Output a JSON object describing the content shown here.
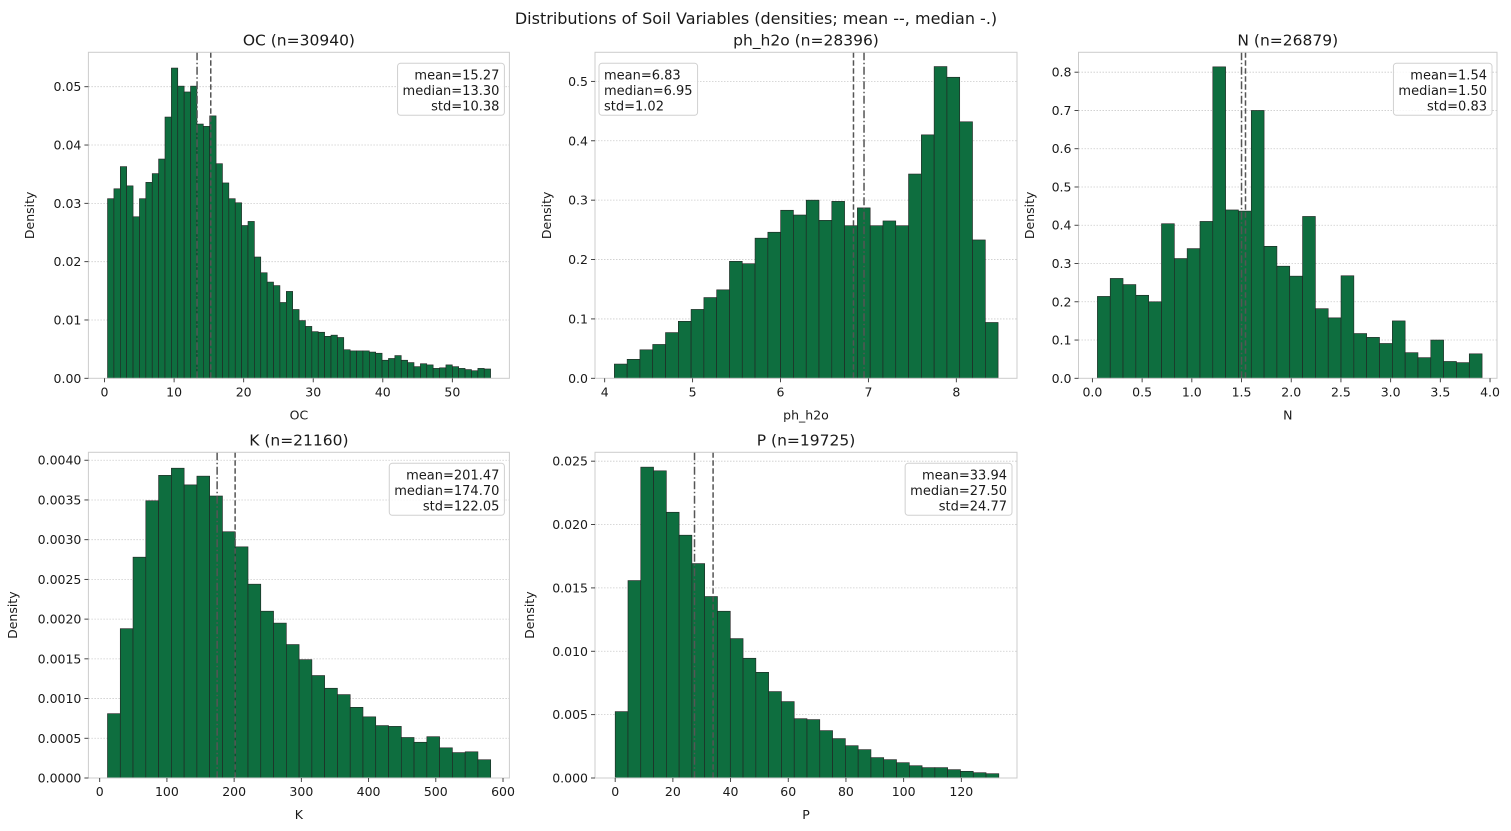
{
  "figure_title": "Distributions of Soil Variables (densities; mean --, median -.)",
  "colors": {
    "bar": "#0e6e3f",
    "bar_edge": "#222222",
    "mean_line": "#555555",
    "median_line": "#555555",
    "grid": "#cccccc",
    "frame": "#cccccc"
  },
  "chart_data": [
    {
      "type": "bar",
      "title": "OC (n=30940)",
      "xlabel": "OC",
      "ylabel": "Density",
      "xlim": [
        -2.32,
        58.2
      ],
      "ylim": [
        0,
        0.0559
      ],
      "bin_range": [
        0.43,
        55.5
      ],
      "xticks": [
        0,
        10,
        20,
        30,
        40,
        50
      ],
      "xtick_labels": [
        "0",
        "10",
        "20",
        "30",
        "40",
        "50"
      ],
      "yticks": [
        0,
        0.01,
        0.02,
        0.03,
        0.04,
        0.05
      ],
      "ytick_labels": [
        "0.00",
        "0.01",
        "0.02",
        "0.03",
        "0.04",
        "0.05"
      ],
      "grid": "y",
      "legend_placement": "top-right",
      "stats": {
        "mean": "15.27",
        "median": "13.30",
        "std": "10.38"
      },
      "mean": 15.27,
      "median": 13.3,
      "values": [
        0.0308,
        0.0325,
        0.0363,
        0.033,
        0.0277,
        0.0308,
        0.0336,
        0.0351,
        0.0376,
        0.0448,
        0.0532,
        0.0501,
        0.0491,
        0.0501,
        0.0436,
        0.0432,
        0.045,
        0.0368,
        0.0335,
        0.0308,
        0.0301,
        0.0262,
        0.0269,
        0.0208,
        0.0181,
        0.0165,
        0.0159,
        0.013,
        0.0149,
        0.0118,
        0.0099,
        0.0089,
        0.008,
        0.0079,
        0.0072,
        0.0074,
        0.007,
        0.0049,
        0.0047,
        0.0047,
        0.0047,
        0.0045,
        0.0043,
        0.0031,
        0.0034,
        0.0039,
        0.0031,
        0.0027,
        0.002,
        0.0025,
        0.0023,
        0.0017,
        0.0018,
        0.0023,
        0.002,
        0.0017,
        0.0015,
        0.0013,
        0.0017,
        0.0016
      ]
    },
    {
      "type": "bar",
      "title": "ph_h2o (n=28396)",
      "xlabel": "ph_h2o",
      "ylabel": "Density",
      "xlim": [
        3.89,
        8.69
      ],
      "ylim": [
        0,
        0.549
      ],
      "bin_range": [
        4.11,
        8.475
      ],
      "xticks": [
        4,
        5,
        6,
        7,
        8
      ],
      "xtick_labels": [
        "4",
        "5",
        "6",
        "7",
        "8"
      ],
      "yticks": [
        0,
        0.1,
        0.2,
        0.3,
        0.4,
        0.5
      ],
      "ytick_labels": [
        "0.0",
        "0.1",
        "0.2",
        "0.3",
        "0.4",
        "0.5"
      ],
      "grid": "y",
      "legend_placement": "top-left",
      "stats": {
        "mean": "6.83",
        "median": "6.95",
        "std": "1.02"
      },
      "mean": 6.83,
      "median": 6.95,
      "values": [
        0.024,
        0.032,
        0.048,
        0.057,
        0.077,
        0.096,
        0.116,
        0.136,
        0.149,
        0.197,
        0.193,
        0.236,
        0.246,
        0.283,
        0.275,
        0.3,
        0.266,
        0.298,
        0.257,
        0.287,
        0.257,
        0.265,
        0.257,
        0.344,
        0.41,
        0.525,
        0.507,
        0.432,
        0.233,
        0.094
      ]
    },
    {
      "type": "bar",
      "title": "N (n=26879)",
      "xlabel": "N",
      "ylabel": "Density",
      "xlim": [
        -0.14,
        4.07
      ],
      "ylim": [
        0,
        0.852
      ],
      "bin_range": [
        0.05,
        3.92
      ],
      "xticks": [
        0,
        0.5,
        1,
        1.5,
        2,
        2.5,
        3,
        3.5,
        4
      ],
      "xtick_labels": [
        "0.0",
        "0.5",
        "1.0",
        "1.5",
        "2.0",
        "2.5",
        "3.0",
        "3.5",
        "4.0"
      ],
      "yticks": [
        0,
        0.1,
        0.2,
        0.3,
        0.4,
        0.5,
        0.6,
        0.7,
        0.8
      ],
      "ytick_labels": [
        "0.0",
        "0.1",
        "0.2",
        "0.3",
        "0.4",
        "0.5",
        "0.6",
        "0.7",
        "0.8"
      ],
      "grid": "y",
      "legend_placement": "top-right",
      "stats": {
        "mean": "1.54",
        "median": "1.50",
        "std": "0.83"
      },
      "mean": 1.54,
      "median": 1.5,
      "values": [
        0.214,
        0.261,
        0.245,
        0.217,
        0.2,
        0.404,
        0.313,
        0.339,
        0.41,
        0.814,
        0.44,
        0.437,
        0.7,
        0.345,
        0.293,
        0.267,
        0.423,
        0.182,
        0.158,
        0.268,
        0.117,
        0.107,
        0.091,
        0.15,
        0.067,
        0.054,
        0.1,
        0.044,
        0.041,
        0.064
      ]
    },
    {
      "type": "bar",
      "title": "K (n=21160)",
      "xlabel": "K",
      "ylabel": "Density",
      "xlim": [
        -16.8,
        609.5
      ],
      "ylim": [
        0,
        0.0041
      ],
      "bin_range": [
        11.6,
        581.7
      ],
      "xticks": [
        0,
        100,
        200,
        300,
        400,
        500,
        600
      ],
      "xtick_labels": [
        "0",
        "100",
        "200",
        "300",
        "400",
        "500",
        "600"
      ],
      "yticks": [
        0,
        0.0005,
        0.001,
        0.0015,
        0.002,
        0.0025,
        0.003,
        0.0035,
        0.004
      ],
      "ytick_labels": [
        "0.0000",
        "0.0005",
        "0.0010",
        "0.0015",
        "0.0020",
        "0.0025",
        "0.0030",
        "0.0035",
        "0.0040"
      ],
      "grid": "y",
      "legend_placement": "top-right",
      "stats": {
        "mean": "201.47",
        "median": "174.70",
        "std": "122.05"
      },
      "mean": 201.47,
      "median": 174.7,
      "values": [
        0.00081,
        0.00188,
        0.00278,
        0.00349,
        0.00381,
        0.0039,
        0.00369,
        0.0038,
        0.00355,
        0.0031,
        0.00291,
        0.00244,
        0.0021,
        0.00195,
        0.00168,
        0.00149,
        0.00129,
        0.00113,
        0.00105,
        0.00089,
        0.00077,
        0.00066,
        0.00065,
        0.00051,
        0.00045,
        0.00052,
        0.00038,
        0.00032,
        0.00033,
        0.00023
      ]
    },
    {
      "type": "bar",
      "title": "P (n=19725)",
      "xlabel": "P",
      "ylabel": "Density",
      "xlim": [
        -7.0,
        139.3
      ],
      "ylim": [
        0,
        0.0257
      ],
      "bin_range": [
        0,
        133
      ],
      "xticks": [
        0,
        20,
        40,
        60,
        80,
        100,
        120
      ],
      "xtick_labels": [
        "0",
        "20",
        "40",
        "60",
        "80",
        "100",
        "120"
      ],
      "yticks": [
        0,
        0.005,
        0.01,
        0.015,
        0.02,
        0.025
      ],
      "ytick_labels": [
        "0.000",
        "0.005",
        "0.010",
        "0.015",
        "0.020",
        "0.025"
      ],
      "grid": "y",
      "legend_placement": "top-right",
      "stats": {
        "mean": "33.94",
        "median": "27.50",
        "std": "24.77"
      },
      "mean": 33.94,
      "median": 27.5,
      "values": [
        0.00524,
        0.01558,
        0.02453,
        0.02424,
        0.02097,
        0.01916,
        0.01692,
        0.01432,
        0.01316,
        0.011,
        0.00945,
        0.00834,
        0.00682,
        0.00603,
        0.00468,
        0.00461,
        0.00374,
        0.00311,
        0.00255,
        0.00224,
        0.00161,
        0.00145,
        0.00121,
        0.00097,
        0.00082,
        0.00082,
        0.00066,
        0.00053,
        0.00042,
        0.00034
      ]
    }
  ]
}
